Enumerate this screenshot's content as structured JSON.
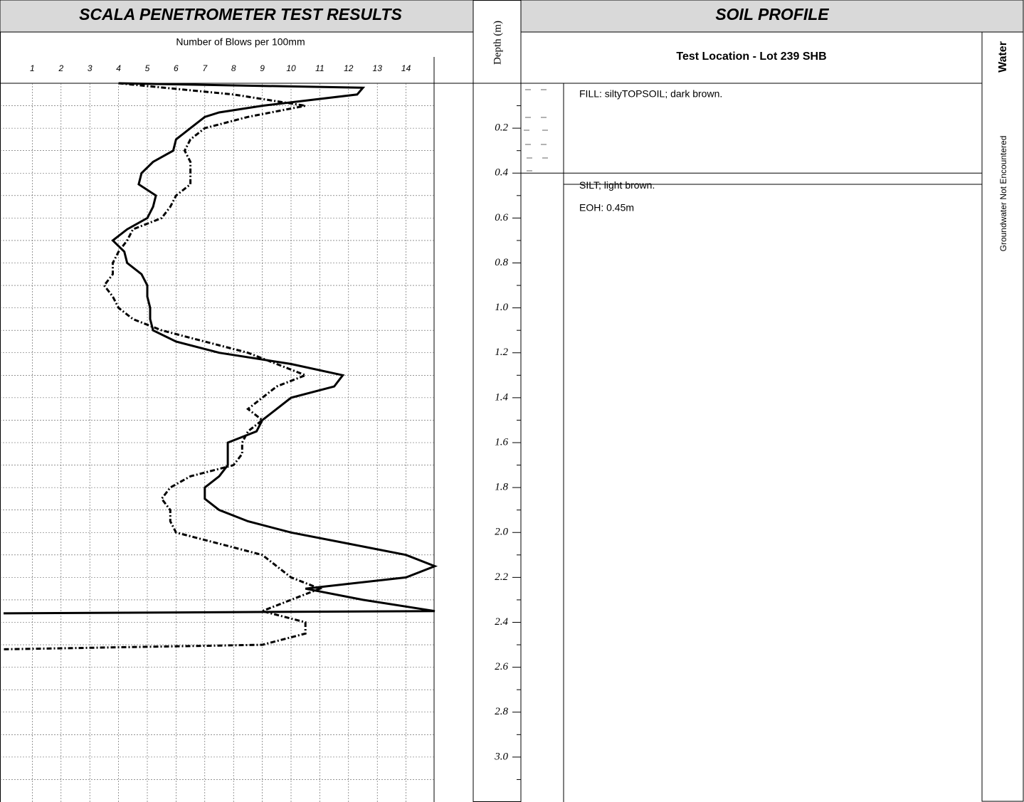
{
  "chart_data": {
    "type": "line",
    "title": "SCALA PENETROMETER TEST RESULTS",
    "xlabel": "Number of Blows per 100mm",
    "ylabel": "Depth (m)",
    "xlim": [
      0,
      15
    ],
    "xticks": [
      1,
      2,
      3,
      4,
      5,
      6,
      7,
      8,
      9,
      10,
      11,
      12,
      13,
      14
    ],
    "ylim": [
      0,
      3.2
    ],
    "yticks": [
      0.2,
      0.4,
      0.6,
      0.8,
      {
        "value": 1,
        "label": "1.0"
      },
      1.2,
      1.4,
      1.6,
      1.8,
      {
        "value": 2,
        "label": "2.0"
      },
      2.2,
      2.4,
      2.6,
      2.8,
      {
        "value": 3,
        "label": "3.0"
      }
    ],
    "yminorticks": [
      0.1,
      0.3,
      0.5,
      0.7,
      0.9,
      1.1,
      1.3,
      1.5,
      1.7,
      1.9,
      2.1,
      2.3,
      2.5,
      2.7,
      2.9,
      3.1
    ],
    "grid": true,
    "series": [
      {
        "color": "#000000",
        "dash": "solid",
        "depth": [
          0,
          0.02,
          0.05,
          0.1,
          0.13,
          0.15,
          0.2,
          0.25,
          0.3,
          0.35,
          0.4,
          0.45,
          0.5,
          0.55,
          0.6,
          0.65,
          0.7,
          0.75,
          0.8,
          0.85,
          0.9,
          0.95,
          1.0,
          1.05,
          1.1,
          1.15,
          1.2,
          1.25,
          1.3,
          1.35,
          1.4,
          1.45,
          1.5,
          1.55,
          1.6,
          1.65,
          1.7,
          1.75,
          1.8,
          1.85,
          1.9,
          1.95,
          2.0,
          2.05,
          2.1,
          2.15,
          2.2,
          2.25,
          2.3,
          2.35,
          2.36
        ],
        "values": [
          4,
          12.5,
          12.3,
          9,
          7.5,
          7,
          6.5,
          6,
          5.9,
          5.2,
          4.8,
          4.7,
          5.3,
          5.2,
          5,
          4.3,
          3.8,
          4.2,
          4.3,
          4.8,
          5,
          5,
          5.1,
          5.1,
          5.2,
          6,
          7.5,
          10,
          11.8,
          11.5,
          10,
          9.5,
          9,
          8.8,
          7.8,
          7.8,
          7.8,
          7.5,
          7,
          7,
          7.5,
          8.5,
          10,
          12,
          14,
          15,
          14,
          10.5,
          12.5,
          15,
          0
        ]
      },
      {
        "color": "#000000",
        "dash": "dash-dot",
        "depth": [
          0,
          0.05,
          0.1,
          0.15,
          0.2,
          0.25,
          0.3,
          0.35,
          0.4,
          0.45,
          0.5,
          0.55,
          0.6,
          0.65,
          0.7,
          0.75,
          0.8,
          0.85,
          0.9,
          0.95,
          1.0,
          1.05,
          1.1,
          1.15,
          1.2,
          1.25,
          1.3,
          1.35,
          1.4,
          1.45,
          1.5,
          1.55,
          1.6,
          1.65,
          1.7,
          1.75,
          1.8,
          1.85,
          1.9,
          1.95,
          2.0,
          2.05,
          2.1,
          2.15,
          2.2,
          2.25,
          2.3,
          2.35,
          2.4,
          2.45,
          2.5,
          2.52
        ],
        "values": [
          4,
          8,
          10.5,
          8.5,
          7,
          6.5,
          6.3,
          6.5,
          6.5,
          6.5,
          6,
          5.8,
          5.5,
          4.5,
          4.3,
          4,
          3.8,
          3.8,
          3.5,
          3.8,
          4,
          4.5,
          5.5,
          7,
          8.5,
          9.5,
          10.5,
          9.5,
          9,
          8.5,
          9,
          8.5,
          8.3,
          8.3,
          8,
          6.5,
          5.8,
          5.5,
          5.8,
          5.8,
          6,
          7.5,
          9,
          9.5,
          10,
          11,
          10,
          9,
          10.5,
          10.5,
          9,
          0
        ]
      }
    ],
    "soil_profile": {
      "title": "SOIL PROFILE",
      "location": "Test Location - Lot 239 SHB",
      "water_header": "Water",
      "water_note": "Groundwater Not Encountered",
      "layers": [
        {
          "description": "FILL: siltyTOPSOIL; dark brown.",
          "top": 0,
          "bottom": 0.4
        },
        {
          "description": "SILT; light brown.",
          "top": 0.4,
          "bottom": 0.45
        }
      ],
      "end_note": "EOH: 0.45m"
    }
  }
}
